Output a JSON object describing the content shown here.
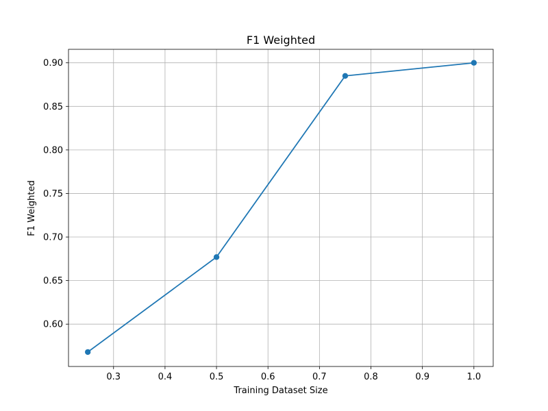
{
  "chart_data": {
    "type": "line",
    "title": "F1 Weighted",
    "xlabel": "Training Dataset Size",
    "ylabel": "F1 Weighted",
    "x": [
      0.25,
      0.5,
      0.75,
      1.0
    ],
    "series": [
      {
        "values": [
          0.568,
          0.677,
          0.885,
          0.9
        ],
        "color": "#1f77b4",
        "marker": "circle"
      }
    ],
    "xlim": [
      0.2125,
      1.0375
    ],
    "ylim": [
      0.5514,
      0.9155
    ],
    "xticks": [
      0.3,
      0.4,
      0.5,
      0.6,
      0.7,
      0.8,
      0.9,
      1.0
    ],
    "xtick_labels": [
      "0.3",
      "0.4",
      "0.5",
      "0.6",
      "0.7",
      "0.8",
      "0.9",
      "1.0"
    ],
    "yticks": [
      0.6,
      0.65,
      0.7,
      0.75,
      0.8,
      0.85,
      0.9
    ],
    "ytick_labels": [
      "0.60",
      "0.65",
      "0.70",
      "0.75",
      "0.80",
      "0.85",
      "0.90"
    ],
    "grid": true
  }
}
